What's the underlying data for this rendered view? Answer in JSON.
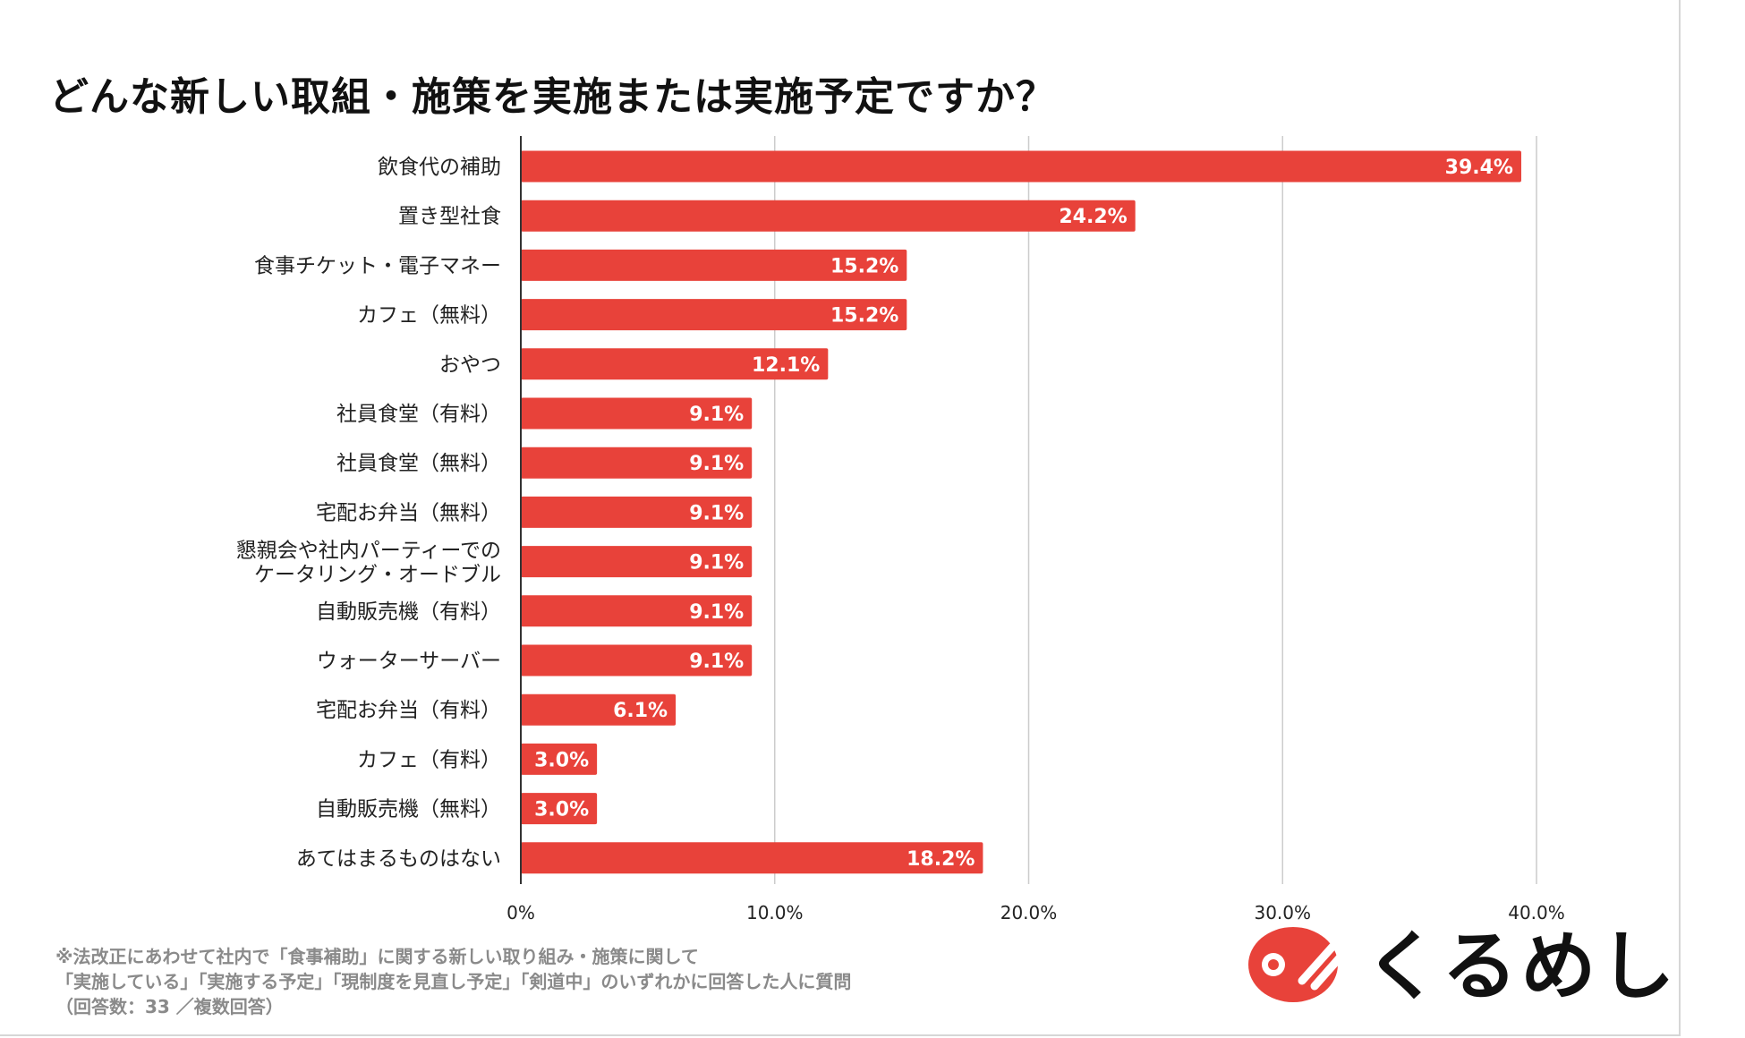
{
  "title": "どんな新しい取組・施策を実施または実施予定ですか？",
  "chart_data": {
    "type": "bar",
    "orientation": "horizontal",
    "title": "どんな新しい取組・施策を実施または実施予定ですか？",
    "categories": [
      [
        "飲食代の補助"
      ],
      [
        "置き型社食"
      ],
      [
        "食事チケット・電子マネー"
      ],
      [
        "カフェ（無料）"
      ],
      [
        "おやつ"
      ],
      [
        "社員食堂（有料）"
      ],
      [
        "社員食堂（無料）"
      ],
      [
        "宅配お弁当（無料）"
      ],
      [
        "懇親会や社内パーティーでの",
        "ケータリング・オードブル"
      ],
      [
        "自動販売機（有料）"
      ],
      [
        "ウォーターサーバー"
      ],
      [
        "宅配お弁当（有料）"
      ],
      [
        "カフェ（有料）"
      ],
      [
        "自動販売機（無料）"
      ],
      [
        "あてはまるものはない"
      ]
    ],
    "values": [
      39.4,
      24.2,
      15.2,
      15.2,
      12.1,
      9.1,
      9.1,
      9.1,
      9.1,
      9.1,
      9.1,
      6.1,
      3.0,
      3.0,
      18.2
    ],
    "value_labels": [
      "39.4%",
      "24.2%",
      "15.2%",
      "15.2%",
      "12.1%",
      "9.1%",
      "9.1%",
      "9.1%",
      "9.1%",
      "9.1%",
      "9.1%",
      "6.1%",
      "3.0%",
      "3.0%",
      "18.2%"
    ],
    "xlim": [
      0,
      40
    ],
    "x_ticks": [
      0,
      10,
      20,
      30,
      40
    ],
    "x_tick_labels": [
      "0%",
      "10.0%",
      "20.0%",
      "30.0%",
      "40.0%"
    ],
    "xlabel": "",
    "ylabel": "",
    "grid": true,
    "bar_color": "#e8423a"
  },
  "footnote": {
    "line1": "※法改正にあわせて社内で「食事補助」に関する新しい取り組み・施策に関して",
    "line2": "「実施している」「実施する予定」「現制度を見直し予定」「剣道中」のいずれかに回答した人に質問",
    "line3": "（回答数：33 ／複数回答）"
  },
  "logo": {
    "text": "くるめし",
    "mark_icon": "kurumeshi-logo-mark",
    "mark_color": "#e8423a"
  }
}
